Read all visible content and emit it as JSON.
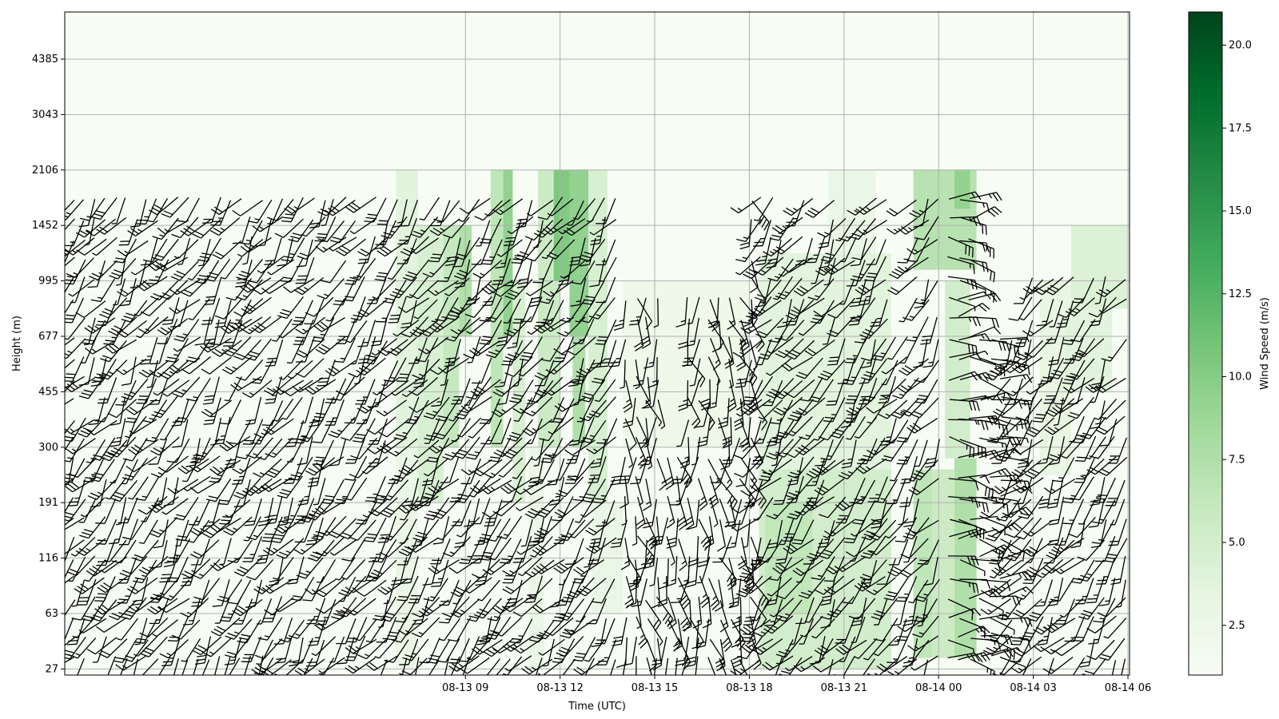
{
  "chart_data": {
    "type": "heatmap",
    "title": "",
    "xlabel": "Time (UTC)",
    "ylabel": "Height (m)",
    "colorbar_label": "Wind Speed (m/s)",
    "colormap": "Greens",
    "x_range_hours": [
      -3.7,
      30.05
    ],
    "x_reference": "08-13 00",
    "x_ticks": [
      {
        "hour": 9,
        "label": "08-13 09"
      },
      {
        "hour": 12,
        "label": "08-13 12"
      },
      {
        "hour": 15,
        "label": "08-13 15"
      },
      {
        "hour": 18,
        "label": "08-13 18"
      },
      {
        "hour": 21,
        "label": "08-13 21"
      },
      {
        "hour": 24,
        "label": "08-14 00"
      },
      {
        "hour": 27,
        "label": "08-14 03"
      },
      {
        "hour": 30,
        "label": "08-14 06"
      }
    ],
    "y_ticks": [
      "27",
      "63",
      "116",
      "191",
      "300",
      "455",
      "677",
      "995",
      "1452",
      "2106",
      "3043",
      "4385"
    ],
    "grid": true,
    "colorbar": {
      "vmin": 1.0,
      "vmax": 21.0,
      "ticks": [
        "2.5",
        "5.0",
        "7.5",
        "10.0",
        "12.5",
        "15.0",
        "17.5",
        "20.0"
      ],
      "colors": [
        "#f7fcf5",
        "#e5f5e0",
        "#c7e9c0",
        "#a1d99b",
        "#74c476",
        "#41ab5d",
        "#238b45",
        "#006d2c",
        "#00441b"
      ]
    },
    "speed_regions": [
      {
        "t0": 6.8,
        "t1": 7.5,
        "h0": 0,
        "h1": 4,
        "speed": 3
      },
      {
        "t0": 6.8,
        "t1": 7.5,
        "h0": 4,
        "h1": 9,
        "speed": 4
      },
      {
        "t0": 7.5,
        "t1": 8.3,
        "h0": 3,
        "h1": 8,
        "speed": 5
      },
      {
        "t0": 8.3,
        "t1": 8.8,
        "h0": 4,
        "h1": 8,
        "speed": 6.5
      },
      {
        "t0": 8.8,
        "t1": 9.2,
        "h0": 6,
        "h1": 8,
        "speed": 8
      },
      {
        "t0": 9.8,
        "t1": 10.2,
        "h0": 4,
        "h1": 9,
        "speed": 7
      },
      {
        "t0": 10.2,
        "t1": 10.5,
        "h0": 6,
        "h1": 9,
        "speed": 10
      },
      {
        "t0": 10.5,
        "t1": 10.9,
        "h0": 3,
        "h1": 7,
        "speed": 5
      },
      {
        "t0": 11.0,
        "t1": 11.5,
        "h0": 0,
        "h1": 4,
        "speed": 3
      },
      {
        "t0": 11.3,
        "t1": 12.0,
        "h0": 4,
        "h1": 9,
        "speed": 6
      },
      {
        "t0": 11.8,
        "t1": 12.3,
        "h0": 7,
        "h1": 9,
        "speed": 11
      },
      {
        "t0": 12.3,
        "t1": 12.9,
        "h0": 6,
        "h1": 9,
        "speed": 10
      },
      {
        "t0": 12.4,
        "t1": 12.8,
        "h0": 4,
        "h1": 6,
        "speed": 8
      },
      {
        "t0": 12.9,
        "t1": 13.5,
        "h0": 3,
        "h1": 9,
        "speed": 5
      },
      {
        "t0": 13.0,
        "t1": 14.0,
        "h0": 1,
        "h1": 3,
        "speed": 3
      },
      {
        "t0": 14.0,
        "t1": 18.0,
        "h0": 4,
        "h1": 7,
        "speed": 2.5
      },
      {
        "t0": 18.3,
        "t1": 22.5,
        "h0": 0,
        "h1": 3.6,
        "speed": 5.5
      },
      {
        "t0": 18.5,
        "t1": 20.0,
        "h0": 1,
        "h1": 3,
        "speed": 6.5
      },
      {
        "t0": 18.3,
        "t1": 22.5,
        "h0": 3.6,
        "h1": 7.5,
        "speed": 4
      },
      {
        "t0": 20.5,
        "t1": 22.0,
        "h0": 7.5,
        "h1": 9,
        "speed": 3
      },
      {
        "t0": 23.2,
        "t1": 23.8,
        "h0": 0.2,
        "h1": 3.6,
        "speed": 7
      },
      {
        "t0": 23.8,
        "t1": 24.5,
        "h0": 0.2,
        "h1": 3.6,
        "speed": 6
      },
      {
        "t0": 24.5,
        "t1": 25.2,
        "h0": 0.2,
        "h1": 3.8,
        "speed": 8
      },
      {
        "t0": 24.2,
        "t1": 25.0,
        "h0": 3.8,
        "h1": 7,
        "speed": 5.5
      },
      {
        "t0": 23.2,
        "t1": 25.2,
        "h0": 7.2,
        "h1": 9,
        "speed": 7.5
      },
      {
        "t0": 24.5,
        "t1": 25.0,
        "h0": 8.3,
        "h1": 9,
        "speed": 9.5
      },
      {
        "t0": 27.2,
        "t1": 28.2,
        "h0": 3.5,
        "h1": 7,
        "speed": 3.5
      },
      {
        "t0": 28.2,
        "t1": 30.0,
        "h0": 6.5,
        "h1": 8,
        "speed": 4.5
      },
      {
        "t0": 28.0,
        "t1": 29.5,
        "h0": 5,
        "h1": 6.5,
        "speed": 4
      }
    ]
  }
}
